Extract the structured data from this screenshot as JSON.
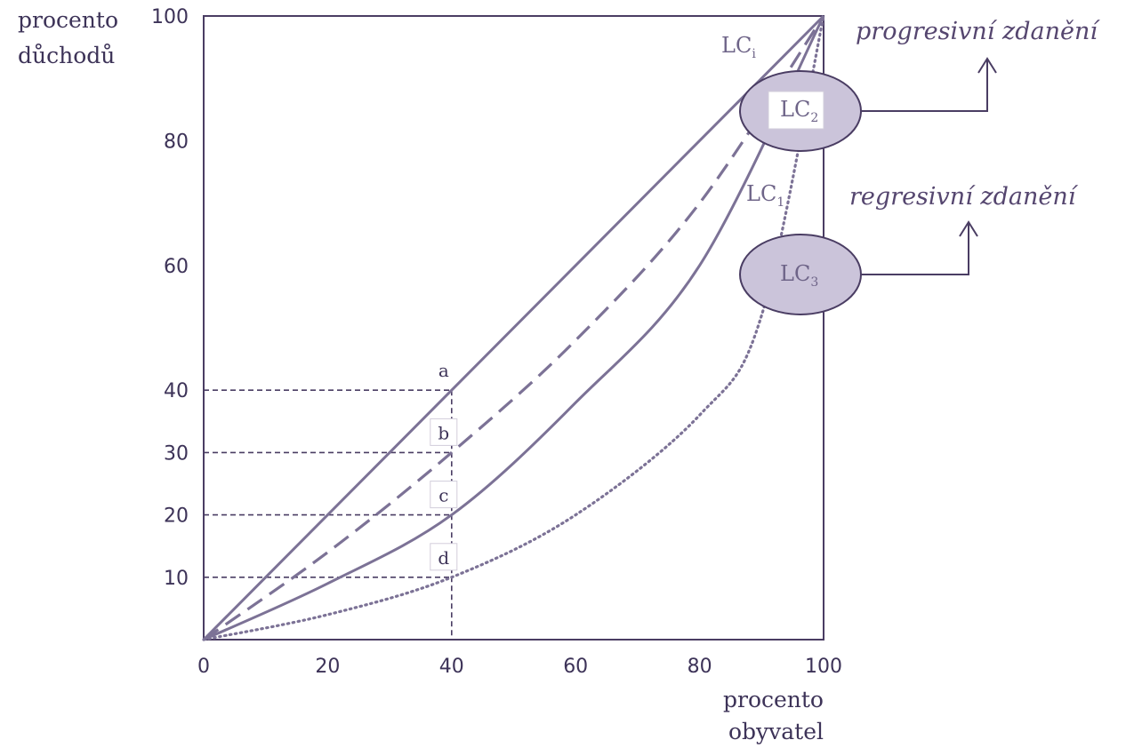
{
  "chart_data": {
    "type": "line",
    "ylabel": [
      "procento",
      "důchodů"
    ],
    "xlabel": [
      "procento",
      "obyvatel"
    ],
    "x_ticks": [
      "0",
      "20",
      "40",
      "60",
      "80",
      "100"
    ],
    "y_ticks": [
      "10",
      "20",
      "30",
      "40",
      "60",
      "80",
      "100"
    ],
    "xlim": [
      0,
      100
    ],
    "ylim": [
      0,
      100
    ],
    "series": [
      {
        "name": "LCi",
        "style": "solid",
        "x": [
          0,
          40,
          100
        ],
        "y": [
          0,
          40,
          100
        ]
      },
      {
        "name": "LC2",
        "style": "dashed",
        "x": [
          0,
          20,
          40,
          60,
          80,
          100
        ],
        "y": [
          0,
          14,
          30,
          48,
          70,
          100
        ]
      },
      {
        "name": "LC1",
        "style": "solid",
        "x": [
          0,
          20,
          40,
          60,
          80,
          100
        ],
        "y": [
          0,
          9,
          20,
          38,
          60,
          100
        ]
      },
      {
        "name": "LC3",
        "style": "dotted",
        "x": [
          0,
          20,
          40,
          60,
          80,
          90,
          100
        ],
        "y": [
          0,
          4,
          10,
          20,
          36,
          52,
          100
        ]
      }
    ],
    "guides_at_x": 40,
    "guide_levels": [
      40,
      30,
      20,
      10
    ],
    "point_labels": [
      "a",
      "b",
      "c",
      "d"
    ],
    "curve_labels": {
      "lci": {
        "main": "LC",
        "sub": "i"
      },
      "lc1": {
        "main": "LC",
        "sub": "1"
      },
      "lc2": {
        "main": "LC",
        "sub": "2"
      },
      "lc3": {
        "main": "LC",
        "sub": "3"
      }
    },
    "annotations": {
      "progressive": "progresivní zdanění",
      "regressive": "regresivní zdanění"
    },
    "grid": false,
    "colors": {
      "axis": "#4a3d63",
      "curves": "#7c7296",
      "highlight": "#cbc4da"
    }
  }
}
